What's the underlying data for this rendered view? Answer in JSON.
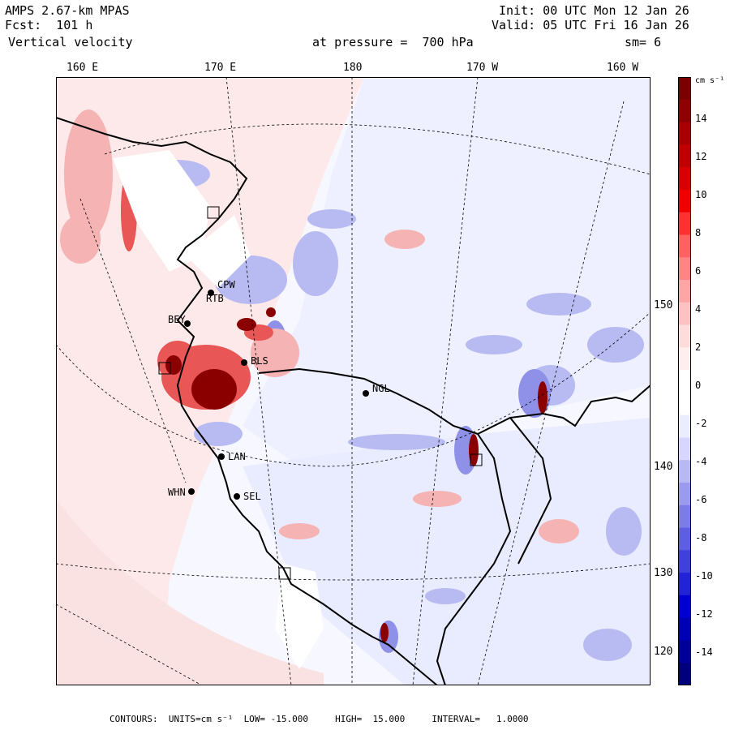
{
  "header": {
    "model": "AMPS 2.67-km MPAS",
    "fcst": "Fcst:  101 h",
    "field": "Vertical velocity",
    "init": "Init: 00 UTC Mon 12 Jan 26",
    "valid": "Valid: 05 UTC Fri 16 Jan 26",
    "pressure": "at pressure =  700 hPa",
    "smooth": "sm= 6"
  },
  "longitude_labels": [
    "160 E",
    "170 E",
    "180",
    "170 W",
    "160 W"
  ],
  "latitude_labels": [
    "150 W",
    "140 W",
    "130 W",
    "120 W"
  ],
  "stations": [
    "CPW",
    "RTB",
    "BEY",
    "BLS",
    "NGL",
    "LAN",
    "WHN",
    "SEL"
  ],
  "colorbar": {
    "unit": "cm s⁻¹",
    "ticks": [
      "14",
      "12",
      "10",
      "8",
      "6",
      "4",
      "2",
      "0",
      "-2",
      "-4",
      "-6",
      "-8",
      "-10",
      "-12",
      "-14"
    ],
    "colors": [
      "#7a0000",
      "#8f0000",
      "#a80000",
      "#c00000",
      "#d80000",
      "#f00000",
      "#ff3030",
      "#ff6060",
      "#ff8585",
      "#ffa5a5",
      "#ffc2c2",
      "#ffdcdc",
      "#ffeeee",
      "#ffffff",
      "#ffffff",
      "#ececff",
      "#d6d6ff",
      "#b8b8f5",
      "#9a9aef",
      "#7c7ce8",
      "#5e5ee2",
      "#4040dc",
      "#2222d6",
      "#0000d0",
      "#0000b4",
      "#000098",
      "#00007c"
    ]
  },
  "footer": {
    "contours": "CONTOURS:  UNITS=cm s⁻¹  LOW= -15.000     HIGH=  15.000     INTERVAL=   1.0000"
  }
}
